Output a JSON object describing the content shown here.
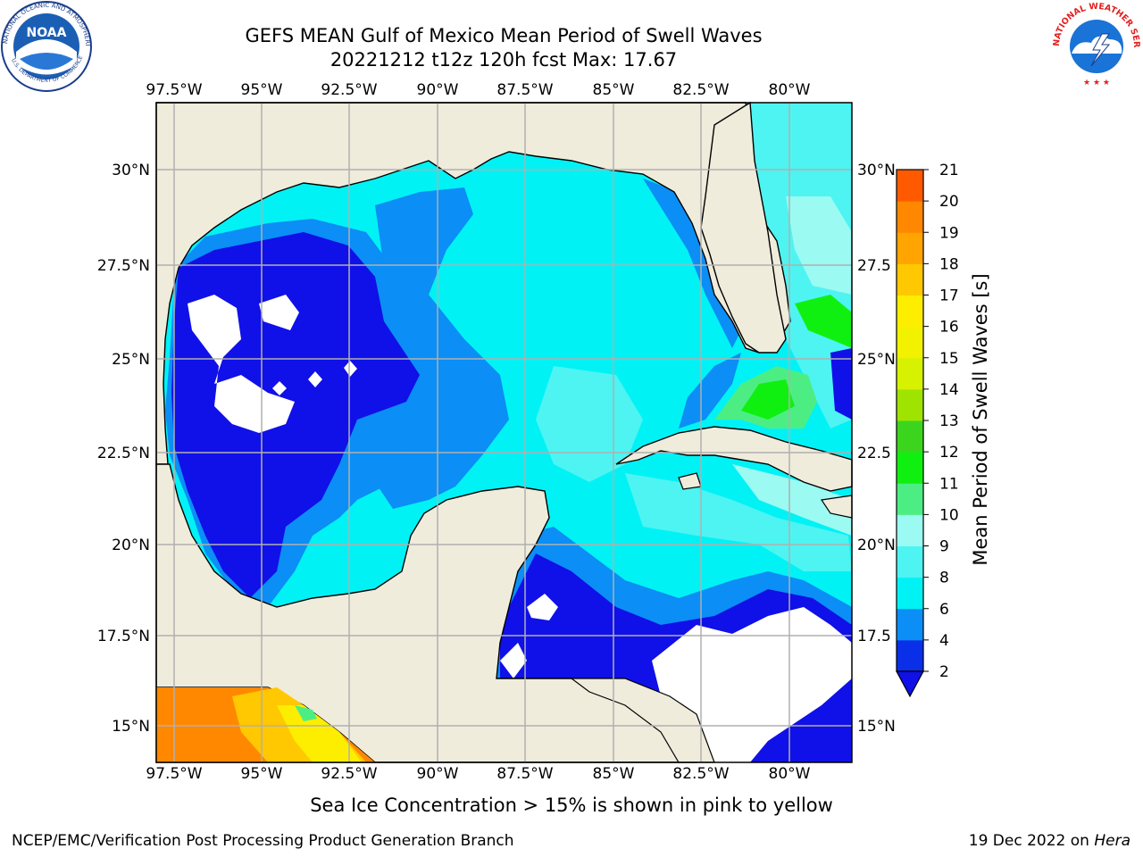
{
  "title": "GEFS MEAN Gulf of Mexico Mean Period of Swell Waves",
  "subtitle": "20221212 t12z 120h fcst   Max: 17.67",
  "logos": {
    "noaa_text": "NOAA",
    "noaa_ring": "NATIONAL OCEANIC AND ATMOSPHERIC ADMINISTRATION",
    "noaa_ring_bottom": "U.S. DEPARTMENT OF COMMERCE",
    "nws_ring": "NATIONAL WEATHER SERVICE"
  },
  "map": {
    "lon_ticks": [
      "97.5°W",
      "95°W",
      "92.5°W",
      "90°W",
      "87.5°W",
      "85°W",
      "82.5°W",
      "80°W"
    ],
    "lat_ticks_left": [
      "30°N",
      "27.5°N",
      "25°N",
      "22.5°N",
      "20°N",
      "17.5°N",
      "15°N"
    ],
    "lat_ticks_right": [
      "30°N",
      "27.5",
      "25°N",
      "22.5",
      "20°N",
      "17.5",
      "15°N"
    ],
    "colors": {
      "land": "#efecdc",
      "grid": "#b0b0b0"
    }
  },
  "colorbar": {
    "label": "Mean Period of Swell Waves [s]",
    "ticks": [
      "2",
      "4",
      "6",
      "8",
      "9",
      "10",
      "11",
      "12",
      "13",
      "14",
      "15",
      "16",
      "17",
      "18",
      "19",
      "20",
      "21"
    ],
    "colors": [
      "#0a2fe8",
      "#0b8ef5",
      "#00f2f5",
      "#4df4f2",
      "#9bfaf2",
      "#4cee84",
      "#10f010",
      "#3bd51e",
      "#9ee400",
      "#d6f200",
      "#f2f200",
      "#fdee00",
      "#ffc800",
      "#ffa400",
      "#ff8800",
      "#ff5a00",
      "#ff2a00",
      "#f80000"
    ],
    "extend_color": "#1010e8"
  },
  "note": "Sea Ice Concentration > 15% is shown in pink to yellow",
  "footer": {
    "left": "NCEP/EMC/Verification Post Processing Product Generation Branch",
    "right_date": "19 Dec 2022 on ",
    "right_host": "Hera"
  }
}
